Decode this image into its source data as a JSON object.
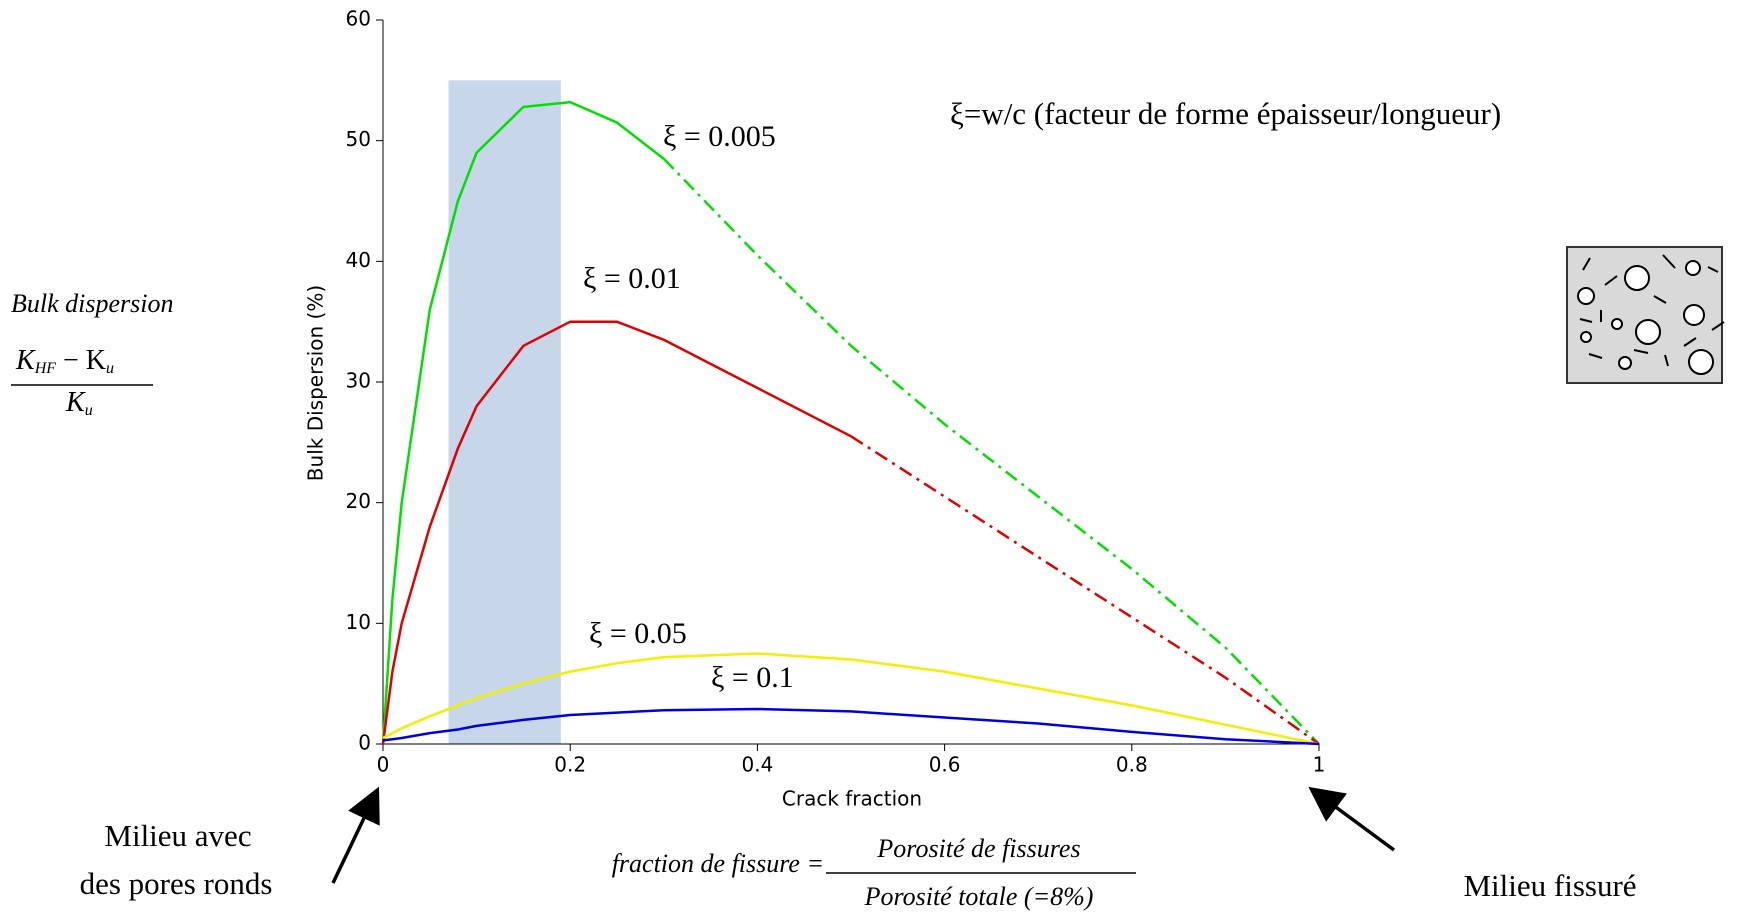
{
  "chart_data": {
    "type": "line",
    "xlabel": "Crack fraction",
    "ylabel": "Bulk Dispersion (%)",
    "x": [
      0,
      0.01,
      0.02,
      0.05,
      0.08,
      0.1,
      0.15,
      0.2,
      0.25,
      0.3,
      0.4,
      0.5,
      0.6,
      0.7,
      0.8,
      0.9,
      1
    ],
    "series": [
      {
        "name": "ξ = 0.005",
        "color": "#00e000",
        "dashed_from": 0.3,
        "values": [
          0,
          12,
          20,
          36,
          45,
          49,
          52.8,
          53.2,
          51.5,
          48.5,
          40.5,
          33,
          26.5,
          20.5,
          14.5,
          8,
          0
        ]
      },
      {
        "name": "ξ = 0.01",
        "color": "#e00000",
        "dashed_from": 0.5,
        "values": [
          0,
          6,
          10,
          18,
          24.5,
          28,
          33,
          35,
          35,
          33.5,
          29.5,
          25.5,
          20.5,
          15.5,
          10.5,
          5.5,
          0
        ]
      },
      {
        "name": "ξ = 0.05",
        "color": "#f0f000",
        "dashed_from": null,
        "values": [
          0.5,
          0.9,
          1.3,
          2.3,
          3.2,
          3.8,
          5,
          6,
          6.7,
          7.2,
          7.5,
          7,
          6,
          4.6,
          3.2,
          1.6,
          0
        ]
      },
      {
        "name": "ξ = 0.1",
        "color": "#0000e0",
        "dashed_from": null,
        "values": [
          0.3,
          0.4,
          0.5,
          0.9,
          1.2,
          1.5,
          2,
          2.4,
          2.6,
          2.8,
          2.9,
          2.7,
          2.2,
          1.7,
          1,
          0.4,
          0
        ]
      }
    ],
    "highlight": {
      "x": [
        0.07,
        0.19
      ],
      "y": [
        0,
        55
      ],
      "color": "#c8d6ea"
    },
    "xlim": [
      0,
      1
    ],
    "xticks": [
      0,
      0.2,
      0.4,
      0.6,
      0.8,
      1
    ],
    "ylim": [
      0,
      60
    ],
    "yticks": [
      0,
      10,
      20,
      30,
      40,
      50,
      60
    ],
    "note": "ξ=w/c (facteur de forme épaisseur/longueur)",
    "left_label": {
      "title": "Bulk dispersion",
      "numerator": [
        "K",
        "HF",
        " − K",
        "u"
      ],
      "denominator": [
        "K",
        "u"
      ]
    },
    "formula": {
      "lhs": "fraction de fissure =",
      "numerator": "Porosité de fissures",
      "denominator": "Porosité totale (=8%)"
    },
    "left_caption": [
      "Milieu avec",
      "des pores ronds"
    ],
    "right_caption": "Milieu fissuré"
  }
}
